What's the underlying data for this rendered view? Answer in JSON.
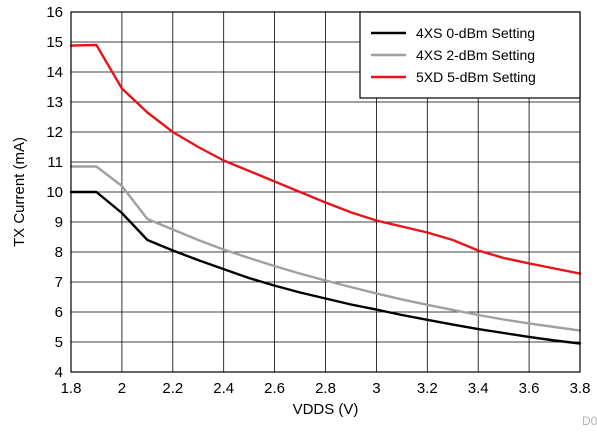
{
  "chart_data": {
    "type": "line",
    "xlabel": "VDDS (V)",
    "ylabel": "TX Current (mA)",
    "xlim": [
      1.8,
      3.8
    ],
    "ylim": [
      4,
      16
    ],
    "x_ticks": [
      "1.8",
      "2",
      "2.2",
      "2.4",
      "2.6",
      "2.8",
      "3",
      "3.2",
      "3.4",
      "3.6",
      "3.8"
    ],
    "y_ticks": [
      "4",
      "5",
      "6",
      "7",
      "8",
      "9",
      "10",
      "11",
      "12",
      "13",
      "14",
      "15",
      "16"
    ],
    "grid": true,
    "legend_position": "top-right",
    "figure_id": "D0",
    "series": [
      {
        "name": "4XS 0-dBm Setting",
        "color": "#000000",
        "x": [
          1.8,
          1.9,
          2.0,
          2.1,
          2.2,
          2.3,
          2.4,
          2.5,
          2.6,
          2.7,
          2.8,
          2.9,
          3.0,
          3.1,
          3.2,
          3.3,
          3.4,
          3.5,
          3.6,
          3.7,
          3.8
        ],
        "y": [
          10.0,
          10.0,
          9.3,
          8.4,
          8.05,
          7.73,
          7.43,
          7.13,
          6.88,
          6.65,
          6.45,
          6.25,
          6.08,
          5.9,
          5.74,
          5.58,
          5.43,
          5.3,
          5.17,
          5.05,
          4.95
        ]
      },
      {
        "name": "4XS 2-dBm Setting",
        "color": "#a0a0a0",
        "x": [
          1.8,
          1.9,
          2.0,
          2.1,
          2.2,
          2.3,
          2.4,
          2.5,
          2.6,
          2.7,
          2.8,
          2.9,
          3.0,
          3.1,
          3.2,
          3.3,
          3.4,
          3.5,
          3.6,
          3.7,
          3.8
        ],
        "y": [
          10.85,
          10.85,
          10.2,
          9.1,
          8.75,
          8.4,
          8.08,
          7.8,
          7.53,
          7.28,
          7.05,
          6.83,
          6.62,
          6.42,
          6.24,
          6.07,
          5.9,
          5.75,
          5.62,
          5.5,
          5.38
        ]
      },
      {
        "name": "5XD 5-dBm Setting",
        "color": "#e8141c",
        "x": [
          1.8,
          1.9,
          2.0,
          2.1,
          2.2,
          2.3,
          2.4,
          2.5,
          2.6,
          2.7,
          2.8,
          2.9,
          3.0,
          3.1,
          3.2,
          3.3,
          3.4,
          3.5,
          3.6,
          3.7,
          3.8
        ],
        "y": [
          14.88,
          14.9,
          13.45,
          12.65,
          12.0,
          11.5,
          11.05,
          10.7,
          10.35,
          10.0,
          9.65,
          9.32,
          9.05,
          8.85,
          8.65,
          8.4,
          8.05,
          7.8,
          7.62,
          7.45,
          7.28
        ]
      }
    ]
  }
}
